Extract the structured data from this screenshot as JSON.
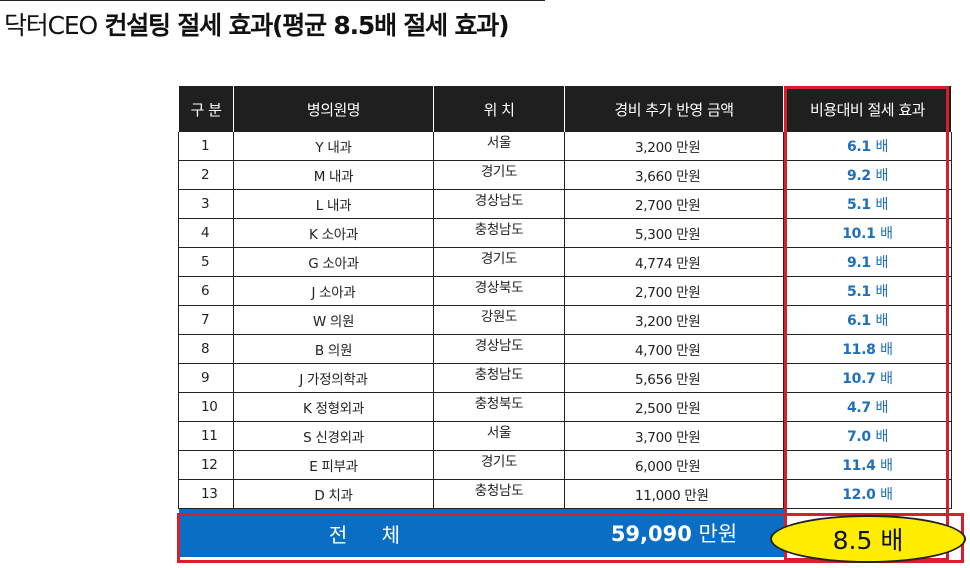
{
  "title": {
    "brand": "닥터CEO",
    "text": " 컨설팅 절세 효과(평균 8.5배 절세 효과)"
  },
  "table": {
    "headers": [
      "구 분",
      "병의원명",
      "위 치",
      "경비 추가 반영 금액",
      "비용대비 절세 효과"
    ],
    "rows": [
      {
        "no": "1",
        "name": "Y 내과",
        "region": "서울",
        "cost": "3,200 만원",
        "effect": "6.1",
        "unit": "배"
      },
      {
        "no": "2",
        "name": "M 내과",
        "region": "경기도",
        "cost": "3,660 만원",
        "effect": "9.2",
        "unit": "배"
      },
      {
        "no": "3",
        "name": "L 내과",
        "region": "경상남도",
        "cost": "2,700 만원",
        "effect": "5.1",
        "unit": "배"
      },
      {
        "no": "4",
        "name": "K 소아과",
        "region": "충청남도",
        "cost": "5,300 만원",
        "effect": "10.1",
        "unit": "배"
      },
      {
        "no": "5",
        "name": "G 소아과",
        "region": "경기도",
        "cost": "4,774 만원",
        "effect": "9.1",
        "unit": "배"
      },
      {
        "no": "6",
        "name": "J 소아과",
        "region": "경상북도",
        "cost": "2,700 만원",
        "effect": "5.1",
        "unit": "배"
      },
      {
        "no": "7",
        "name": "W 의원",
        "region": "강원도",
        "cost": "3,200 만원",
        "effect": "6.1",
        "unit": "배"
      },
      {
        "no": "8",
        "name": "B 의원",
        "region": "경상남도",
        "cost": "4,700 만원",
        "effect": "11.8",
        "unit": "배"
      },
      {
        "no": "9",
        "name": "J 가정의학과",
        "region": "충청남도",
        "cost": "5,656 만원",
        "effect": "10.7",
        "unit": "배"
      },
      {
        "no": "10",
        "name": "K 정형외과",
        "region": "충청북도",
        "cost": "2,500 만원",
        "effect": "4.7",
        "unit": "배"
      },
      {
        "no": "11",
        "name": "S 신경외과",
        "region": "서울",
        "cost": "3,700 만원",
        "effect": "7.0",
        "unit": "배"
      },
      {
        "no": "12",
        "name": "E 피부과",
        "region": "경기도",
        "cost": "6,000 만원",
        "effect": "11.4",
        "unit": "배"
      },
      {
        "no": "13",
        "name": "D 치과",
        "region": "충청남도",
        "cost": "11,000 만원",
        "effect": "12.0",
        "unit": "배"
      }
    ],
    "total": {
      "label": "전 체",
      "cost_value": "59,090",
      "cost_unit": " 만원",
      "effect": "8.5 배"
    }
  },
  "colors": {
    "header_bg": "#1f1f1f",
    "total_bg": "#0a6fc4",
    "effect_text": "#1e6fbd",
    "highlight_border": "#d3202a",
    "oval_fill": "#ffed00"
  }
}
